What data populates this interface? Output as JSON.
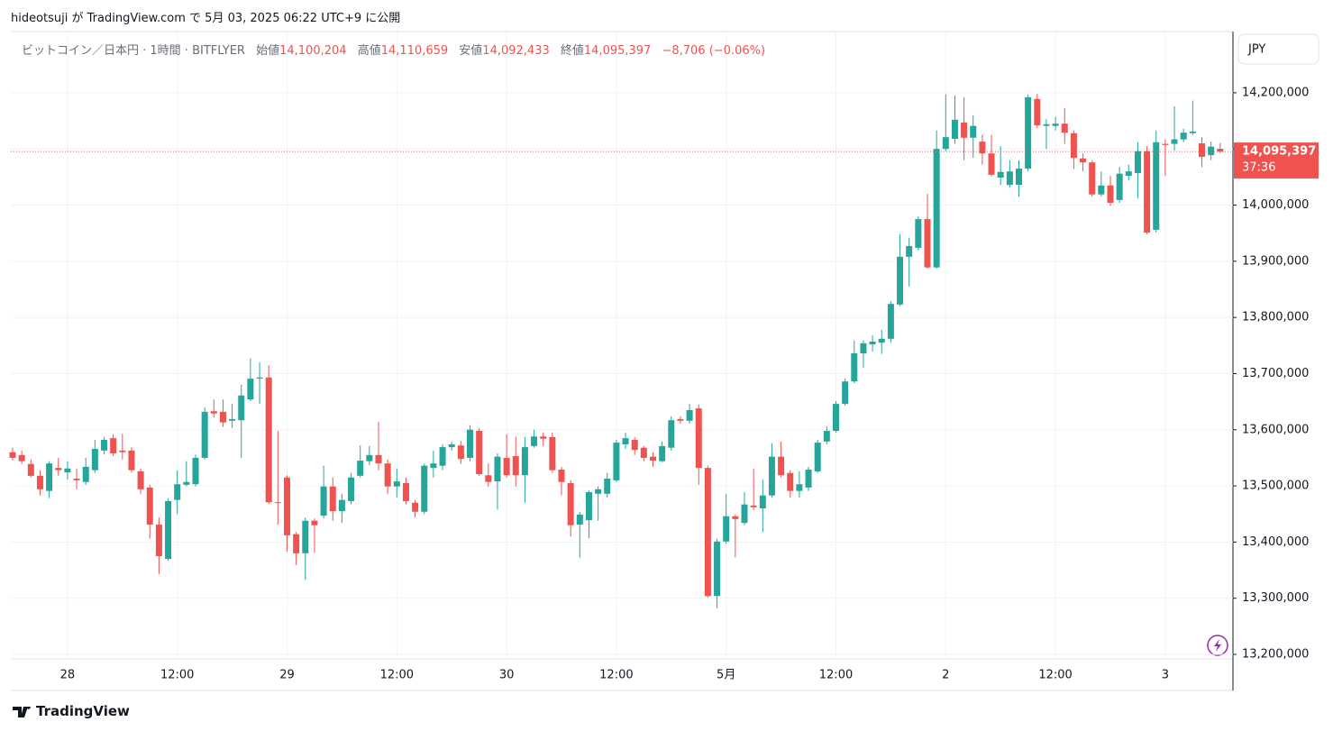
{
  "header": {
    "title": "hideotsuji が TradingView.com で 5月 03, 2025 06:22 UTC+9 に公開"
  },
  "legend": {
    "symbol": "ビットコイン／日本円 · 1時間 · BITFLYER",
    "items": [
      {
        "label": "始値",
        "value": "14,100,204"
      },
      {
        "label": "高値",
        "value": "14,110,659"
      },
      {
        "label": "安値",
        "value": "14,092,433"
      },
      {
        "label": "終値",
        "value": "14,095,397"
      }
    ],
    "change": "−8,706 (−0.06%)"
  },
  "price_scale": {
    "currency": "JPY",
    "last_price_label": "14,095,397",
    "countdown": "37:36"
  },
  "footer": {
    "brand": "TradingView"
  },
  "chart_data": {
    "type": "candlestick",
    "up_color": "#26a69a",
    "down_color": "#ef5350",
    "grid": true,
    "categories": [
      null,
      null,
      null,
      null,
      null,
      null,
      "28",
      null,
      null,
      null,
      null,
      null,
      null,
      null,
      null,
      null,
      null,
      null,
      "12:00",
      null,
      null,
      null,
      null,
      null,
      null,
      null,
      null,
      null,
      null,
      null,
      "29",
      null,
      null,
      null,
      null,
      null,
      null,
      null,
      null,
      null,
      null,
      null,
      "12:00",
      null,
      null,
      null,
      null,
      null,
      null,
      null,
      null,
      null,
      null,
      null,
      "30",
      null,
      null,
      null,
      null,
      null,
      null,
      null,
      null,
      null,
      null,
      null,
      "12:00",
      null,
      null,
      null,
      null,
      null,
      null,
      null,
      null,
      null,
      null,
      null,
      "5月",
      null,
      null,
      null,
      null,
      null,
      null,
      null,
      null,
      null,
      null,
      null,
      "12:00",
      null,
      null,
      null,
      null,
      null,
      null,
      null,
      null,
      null,
      null,
      null,
      "2",
      null,
      null,
      null,
      null,
      null,
      null,
      null,
      null,
      null,
      null,
      null,
      "12:00",
      null,
      null,
      null,
      null,
      null,
      null,
      null,
      null,
      null,
      null,
      null,
      "3",
      null,
      null,
      null,
      null,
      null,
      null
    ],
    "open": [
      13560000,
      13555000,
      13539000,
      13518000,
      13491000,
      13532000,
      13524000,
      13513000,
      13507000,
      13528000,
      13563000,
      13585000,
      13563000,
      13563000,
      13526000,
      13497000,
      13431000,
      13370000,
      13475000,
      13502000,
      13503000,
      13550000,
      13633000,
      13632000,
      13616000,
      13617000,
      13654000,
      13691000,
      13693000,
      13471000,
      13515000,
      13414000,
      13380000,
      13438000,
      13447000,
      13499000,
      13455000,
      13473000,
      13518000,
      13544000,
      13555000,
      13540000,
      13499000,
      13505000,
      13470000,
      13454000,
      13532000,
      13536000,
      13569000,
      13572000,
      13550000,
      13598000,
      13519000,
      13508000,
      13550000,
      13553000,
      13519000,
      13571000,
      13588000,
      13587000,
      13529000,
      13505000,
      13431000,
      13439000,
      13486000,
      13486000,
      13510000,
      13574000,
      13582000,
      13568000,
      13552000,
      13544000,
      13568000,
      13619000,
      13616000,
      13638000,
      13532000,
      13304000,
      13401000,
      13446000,
      13434000,
      13465000,
      13460000,
      13483000,
      13552000,
      13523000,
      13491000,
      13497000,
      13526000,
      13579000,
      13598000,
      13646000,
      13686000,
      13736000,
      13752000,
      13755000,
      13762000,
      13823000,
      13908000,
      13924000,
      13975000,
      13889000,
      14100000,
      14118000,
      14147000,
      14120000,
      14113000,
      14092000,
      14049000,
      14036000,
      14036000,
      14065000,
      14189000,
      14141000,
      14141000,
      14145000,
      14128000,
      14083000,
      14076000,
      14019000,
      14035000,
      14009000,
      14052000,
      14057000,
      14096000,
      13956000,
      14109000,
      14109000,
      14117000,
      14128000,
      14110000,
      14089000,
      14100204
    ],
    "high": [
      13568000,
      13563000,
      13547000,
      13528000,
      13544000,
      13550000,
      13544000,
      13531000,
      13550000,
      13582000,
      13587000,
      13592000,
      13593000,
      13569000,
      13531000,
      13502000,
      13444000,
      13478000,
      13528000,
      13544000,
      13556000,
      13640000,
      13654000,
      13654000,
      13646000,
      13680000,
      13727000,
      13720000,
      13715000,
      13598000,
      13519000,
      13418000,
      13444000,
      13442000,
      13536000,
      13515000,
      13486000,
      13523000,
      13572000,
      13571000,
      13614000,
      13547000,
      13531000,
      13515000,
      13475000,
      13540000,
      13563000,
      13574000,
      13579000,
      13580000,
      13608000,
      13603000,
      13540000,
      13558000,
      13592000,
      13587000,
      13587000,
      13600000,
      13595000,
      13595000,
      13534000,
      13510000,
      13454000,
      13492000,
      13499000,
      13523000,
      13582000,
      13595000,
      13587000,
      13571000,
      13560000,
      13579000,
      13624000,
      13624000,
      13646000,
      13645000,
      13536000,
      13406000,
      13486000,
      13450000,
      13489000,
      13531000,
      13511000,
      13576000,
      13579000,
      13528000,
      13526000,
      13534000,
      13582000,
      13606000,
      13651000,
      13691000,
      13759000,
      13759000,
      13768000,
      13778000,
      13829000,
      13948000,
      13942000,
      13980000,
      14020000,
      14133000,
      14197000,
      14195000,
      14192000,
      14160000,
      14125000,
      14125000,
      14105000,
      14080000,
      14080000,
      14197000,
      14198000,
      14153000,
      14157000,
      14173000,
      14133000,
      14092000,
      14080000,
      14060000,
      14052000,
      14068000,
      14072000,
      14112000,
      14105000,
      14133000,
      14117000,
      14176000,
      14136000,
      14186000,
      14121000,
      14113000,
      14110659
    ],
    "low": [
      13545000,
      13539000,
      13515000,
      13483000,
      13478000,
      13518000,
      13511000,
      13494000,
      13502000,
      13523000,
      13556000,
      13553000,
      13547000,
      13524000,
      13486000,
      13406000,
      13343000,
      13367000,
      13450000,
      13499000,
      13499000,
      13547000,
      13622000,
      13605000,
      13603000,
      13550000,
      13651000,
      13646000,
      13468000,
      13431000,
      13383000,
      13359000,
      13333000,
      13381000,
      13442000,
      13438000,
      13434000,
      13467000,
      13515000,
      13537000,
      13528000,
      13486000,
      13479000,
      13467000,
      13444000,
      13450000,
      13515000,
      13528000,
      13563000,
      13539000,
      13544000,
      13518000,
      13499000,
      13458000,
      13515000,
      13499000,
      13470000,
      13568000,
      13571000,
      13523000,
      13483000,
      13410000,
      13372000,
      13407000,
      13438000,
      13479000,
      13507000,
      13566000,
      13555000,
      13544000,
      13534000,
      13542000,
      13563000,
      13611000,
      13611000,
      13502000,
      13301000,
      13282000,
      13397000,
      13373000,
      13430000,
      13457000,
      13418000,
      13479000,
      13515000,
      13479000,
      13479000,
      13491000,
      13523000,
      13574000,
      13595000,
      13643000,
      13683000,
      13710000,
      13739000,
      13735000,
      13755000,
      13820000,
      13855000,
      13919000,
      13887000,
      13887000,
      14096000,
      14109000,
      14080000,
      14084000,
      14072000,
      14051000,
      14036000,
      14031000,
      14015000,
      14060000,
      14137000,
      14100000,
      14133000,
      14109000,
      14064000,
      14060000,
      14015000,
      14015000,
      13999000,
      14004000,
      14044000,
      14012000,
      13948000,
      13951000,
      14052000,
      14097000,
      14112000,
      14125000,
      14068000,
      14080000,
      14092433
    ],
    "close": [
      13550000,
      13544000,
      13518000,
      13494000,
      13540000,
      13528000,
      13531000,
      13510000,
      13534000,
      13566000,
      13582000,
      13558000,
      13560000,
      13528000,
      13494000,
      13431000,
      13375000,
      13473000,
      13503000,
      13507000,
      13550000,
      13632000,
      13629000,
      13613000,
      13619000,
      13661000,
      13691000,
      13693000,
      13471000,
      13470000,
      13412000,
      13380000,
      13438000,
      13430000,
      13499000,
      13455000,
      13475000,
      13515000,
      13545000,
      13555000,
      13540000,
      13499000,
      13508000,
      13473000,
      13454000,
      13536000,
      13540000,
      13569000,
      13574000,
      13548000,
      13600000,
      13521000,
      13507000,
      13552000,
      13519000,
      13519000,
      13569000,
      13588000,
      13584000,
      13528000,
      13507000,
      13430000,
      13449000,
      13489000,
      13494000,
      13513000,
      13577000,
      13585000,
      13564000,
      13550000,
      13545000,
      13571000,
      13617000,
      13616000,
      13635000,
      13532000,
      13304000,
      13401000,
      13446000,
      13441000,
      13467000,
      13462000,
      13483000,
      13552000,
      13519000,
      13491000,
      13503000,
      13529000,
      13577000,
      13598000,
      13646000,
      13686000,
      13736000,
      13754000,
      13757000,
      13762000,
      13824000,
      13908000,
      13927000,
      13975000,
      13889000,
      14100000,
      14121000,
      14152000,
      14120000,
      14141000,
      14092000,
      14054000,
      14059000,
      14060000,
      14065000,
      14192000,
      14142000,
      14144000,
      14145000,
      14129000,
      14084000,
      14076000,
      14019000,
      14035000,
      14004000,
      14056000,
      14060000,
      14096000,
      13951000,
      14112000,
      14107000,
      14117000,
      14129000,
      14131000,
      14086000,
      14104000,
      14095397
    ],
    "ylim": [
      13192000,
      14309000
    ],
    "yticks": [
      {
        "value": 13200000,
        "label": "13,200,000"
      },
      {
        "value": 13300000,
        "label": "13,300,000"
      },
      {
        "value": 13400000,
        "label": "13,400,000"
      },
      {
        "value": 13500000,
        "label": "13,500,000"
      },
      {
        "value": 13600000,
        "label": "13,600,000"
      },
      {
        "value": 13700000,
        "label": "13,700,000"
      },
      {
        "value": 13800000,
        "label": "13,800,000"
      },
      {
        "value": 13900000,
        "label": "13,900,000"
      },
      {
        "value": 14000000,
        "label": "14,000,000"
      },
      {
        "value": 14100000,
        "label": "14,100,000"
      },
      {
        "value": 14200000,
        "label": "14,200,000"
      }
    ]
  }
}
